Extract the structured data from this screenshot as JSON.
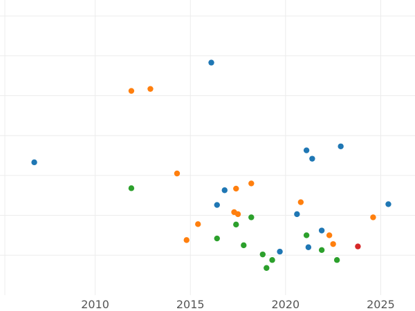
{
  "chart_data": {
    "type": "scatter",
    "xlim": [
      2005,
      2026.8
    ],
    "ylim": [
      0,
      7.4
    ],
    "x_ticks": [
      2010,
      2015,
      2020,
      2025
    ],
    "x_tick_labels": [
      "2010",
      "2015",
      "2020",
      "2025"
    ],
    "y_gridlines": [
      1,
      2,
      3,
      4,
      5,
      6,
      7
    ],
    "grid": true,
    "legend": "none",
    "series": [
      {
        "color": "#1f77b4",
        "points": [
          {
            "x": 2006.8,
            "y": 3.33
          },
          {
            "x": 2016.1,
            "y": 5.83
          },
          {
            "x": 2016.4,
            "y": 2.26
          },
          {
            "x": 2016.8,
            "y": 2.63
          },
          {
            "x": 2019.7,
            "y": 1.09
          },
          {
            "x": 2020.6,
            "y": 2.03
          },
          {
            "x": 2021.1,
            "y": 3.63
          },
          {
            "x": 2021.2,
            "y": 1.2
          },
          {
            "x": 2021.4,
            "y": 3.42
          },
          {
            "x": 2021.9,
            "y": 1.62
          },
          {
            "x": 2022.9,
            "y": 3.73
          },
          {
            "x": 2025.4,
            "y": 2.28
          }
        ]
      },
      {
        "color": "#ff7f0e",
        "points": [
          {
            "x": 2011.9,
            "y": 5.12
          },
          {
            "x": 2012.9,
            "y": 5.17
          },
          {
            "x": 2014.3,
            "y": 3.05
          },
          {
            "x": 2014.8,
            "y": 1.38
          },
          {
            "x": 2015.4,
            "y": 1.78
          },
          {
            "x": 2017.3,
            "y": 2.08
          },
          {
            "x": 2017.4,
            "y": 2.67
          },
          {
            "x": 2017.5,
            "y": 2.03
          },
          {
            "x": 2018.2,
            "y": 2.8
          },
          {
            "x": 2020.8,
            "y": 2.33
          },
          {
            "x": 2022.3,
            "y": 1.5
          },
          {
            "x": 2022.5,
            "y": 1.28
          },
          {
            "x": 2024.6,
            "y": 1.95
          }
        ]
      },
      {
        "color": "#2ca02c",
        "points": [
          {
            "x": 2011.9,
            "y": 2.68
          },
          {
            "x": 2016.4,
            "y": 1.42
          },
          {
            "x": 2017.4,
            "y": 1.77
          },
          {
            "x": 2017.8,
            "y": 1.25
          },
          {
            "x": 2018.2,
            "y": 1.95
          },
          {
            "x": 2018.8,
            "y": 1.02
          },
          {
            "x": 2019.0,
            "y": 0.68
          },
          {
            "x": 2019.3,
            "y": 0.88
          },
          {
            "x": 2021.1,
            "y": 1.5
          },
          {
            "x": 2021.9,
            "y": 1.13
          },
          {
            "x": 2022.7,
            "y": 0.88
          }
        ]
      },
      {
        "color": "#d62728",
        "points": [
          {
            "x": 2023.8,
            "y": 1.22
          }
        ]
      }
    ]
  }
}
